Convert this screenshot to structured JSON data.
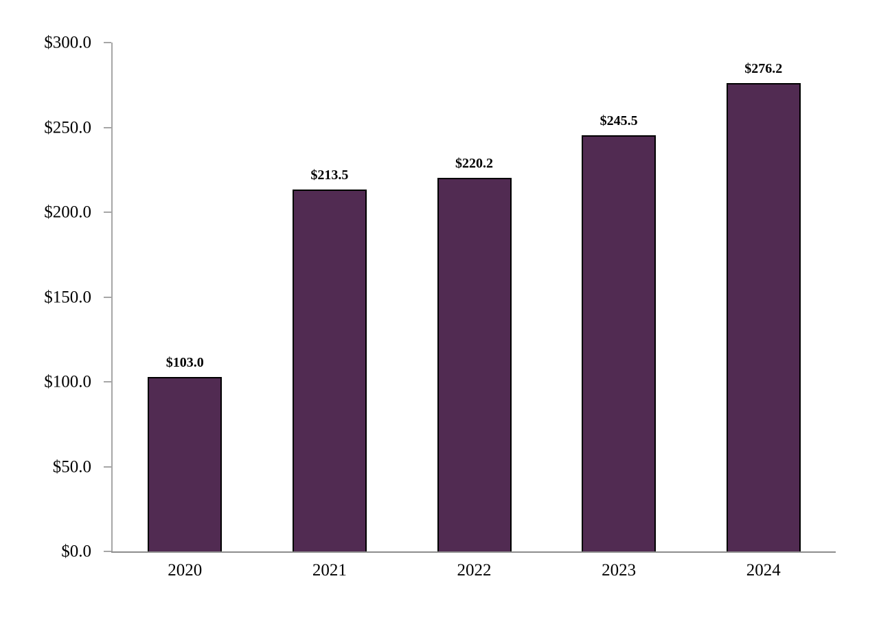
{
  "chart_data": {
    "type": "bar",
    "title": "",
    "xlabel": "",
    "ylabel": "",
    "categories": [
      "2020",
      "2021",
      "2022",
      "2023",
      "2024"
    ],
    "values": [
      103.0,
      213.5,
      220.2,
      245.5,
      276.2
    ],
    "data_labels": [
      "$103.0",
      "$213.5",
      "$220.2",
      "$245.5",
      "$276.2"
    ],
    "ylim": [
      0,
      300
    ],
    "y_ticks": [
      0,
      50,
      100,
      150,
      200,
      250,
      300
    ],
    "y_tick_labels": [
      "$0.0",
      "$50.0",
      "$100.0",
      "$150.0",
      "$200.0",
      "$250.0",
      "$300.0"
    ],
    "grid": false,
    "legend": false,
    "colors": {
      "bar_fill": "#512b52",
      "bar_border": "#000000",
      "y_axis": "#a6a6a6",
      "x_axis": "#8c8c8c",
      "text": "#000000",
      "background": "#ffffff"
    }
  }
}
